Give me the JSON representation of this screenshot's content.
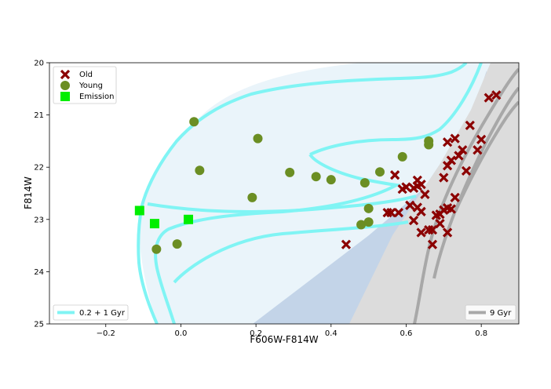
{
  "chart_data": {
    "type": "scatter",
    "xlabel": "F606W-F814W",
    "ylabel": "F814W",
    "xlim": [
      -0.35,
      0.9
    ],
    "ylim": [
      25,
      20
    ],
    "y_inverted": true,
    "x_ticks": [
      "−0.2",
      "0.0",
      "0.2",
      "0.4",
      "0.6",
      "0.8"
    ],
    "x_tick_values": [
      -0.2,
      0.0,
      0.2,
      0.4,
      0.6,
      0.8
    ],
    "y_ticks": [
      "20",
      "21",
      "22",
      "23",
      "24",
      "25"
    ],
    "y_tick_values": [
      20,
      21,
      22,
      23,
      24,
      25
    ],
    "grid": false,
    "series": [
      {
        "name": "Old",
        "marker": "x",
        "color": "#8b0000",
        "points": [
          [
            0.44,
            23.48
          ],
          [
            0.56,
            22.87
          ],
          [
            0.58,
            22.87
          ],
          [
            0.55,
            22.87
          ],
          [
            0.57,
            22.15
          ],
          [
            0.59,
            22.42
          ],
          [
            0.6,
            22.38
          ],
          [
            0.61,
            22.73
          ],
          [
            0.62,
            22.4
          ],
          [
            0.63,
            22.25
          ],
          [
            0.63,
            22.36
          ],
          [
            0.64,
            22.33
          ],
          [
            0.65,
            22.52
          ],
          [
            0.63,
            22.77
          ],
          [
            0.64,
            22.85
          ],
          [
            0.62,
            23.02
          ],
          [
            0.64,
            23.25
          ],
          [
            0.66,
            23.2
          ],
          [
            0.67,
            23.2
          ],
          [
            0.67,
            23.48
          ],
          [
            0.68,
            22.92
          ],
          [
            0.69,
            22.9
          ],
          [
            0.69,
            23.08
          ],
          [
            0.7,
            22.82
          ],
          [
            0.71,
            23.25
          ],
          [
            0.71,
            22.78
          ],
          [
            0.72,
            22.8
          ],
          [
            0.73,
            22.58
          ],
          [
            0.7,
            22.2
          ],
          [
            0.71,
            21.97
          ],
          [
            0.72,
            21.87
          ],
          [
            0.74,
            21.78
          ],
          [
            0.76,
            22.07
          ],
          [
            0.71,
            21.52
          ],
          [
            0.73,
            21.45
          ],
          [
            0.75,
            21.67
          ],
          [
            0.77,
            21.2
          ],
          [
            0.79,
            21.67
          ],
          [
            0.8,
            21.47
          ],
          [
            0.82,
            20.67
          ],
          [
            0.84,
            20.62
          ]
        ]
      },
      {
        "name": "Young",
        "marker": "o",
        "color": "#6b8e23",
        "points": [
          [
            0.035,
            21.13
          ],
          [
            0.205,
            21.45
          ],
          [
            0.05,
            22.06
          ],
          [
            0.29,
            22.1
          ],
          [
            0.36,
            22.18
          ],
          [
            0.4,
            22.24
          ],
          [
            0.49,
            22.3
          ],
          [
            0.53,
            22.09
          ],
          [
            0.59,
            21.8
          ],
          [
            0.66,
            21.5
          ],
          [
            0.66,
            21.57
          ],
          [
            0.19,
            22.58
          ],
          [
            0.5,
            22.79
          ],
          [
            0.48,
            23.1
          ],
          [
            0.5,
            23.05
          ],
          [
            -0.01,
            23.47
          ],
          [
            -0.065,
            23.57
          ]
        ]
      },
      {
        "name": "Emission",
        "marker": "s",
        "color": "#00ee00",
        "points": [
          [
            -0.11,
            22.83
          ],
          [
            -0.07,
            23.08
          ],
          [
            0.02,
            23.0
          ]
        ]
      }
    ],
    "isochrones": [
      {
        "name": "0.2 + 1 Gyr",
        "color": "#80f4f4",
        "legend_location": "lower-left"
      },
      {
        "name": "9 Gyr",
        "color": "#a8a8a8",
        "legend_location": "lower-right"
      }
    ],
    "legend_location": "upper-left",
    "colors": {
      "shade_light": "#eaf4fa",
      "shade_blue": "#c3d4e8",
      "shade_gray": "#dcdcdc"
    }
  }
}
